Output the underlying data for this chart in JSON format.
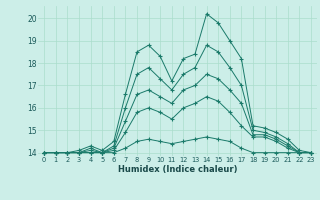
{
  "xlabel": "Humidex (Indice chaleur)",
  "background_color": "#cceee8",
  "grid_color": "#aaddcc",
  "line_color": "#1a7a6a",
  "xlim": [
    -0.5,
    23.5
  ],
  "ylim": [
    13.85,
    20.55
  ],
  "yticks": [
    14,
    15,
    16,
    17,
    18,
    19,
    20
  ],
  "xticks": [
    0,
    1,
    2,
    3,
    4,
    5,
    6,
    7,
    8,
    9,
    10,
    11,
    12,
    13,
    14,
    15,
    16,
    17,
    18,
    19,
    20,
    21,
    22,
    23
  ],
  "series": [
    [
      14.0,
      14.0,
      14.0,
      14.1,
      14.3,
      14.1,
      14.5,
      16.6,
      18.5,
      18.8,
      18.3,
      17.2,
      18.2,
      18.4,
      20.2,
      19.8,
      19.0,
      18.2,
      15.2,
      15.1,
      14.9,
      14.6,
      14.1,
      14.0
    ],
    [
      14.0,
      14.0,
      14.0,
      14.0,
      14.2,
      14.0,
      14.3,
      16.0,
      17.5,
      17.8,
      17.3,
      16.8,
      17.5,
      17.8,
      18.8,
      18.5,
      17.8,
      17.0,
      15.0,
      14.9,
      14.7,
      14.4,
      14.0,
      14.0
    ],
    [
      14.0,
      14.0,
      14.0,
      14.0,
      14.1,
      14.0,
      14.2,
      15.4,
      16.6,
      16.8,
      16.5,
      16.2,
      16.8,
      17.0,
      17.5,
      17.3,
      16.8,
      16.2,
      14.8,
      14.8,
      14.6,
      14.3,
      14.0,
      14.0
    ],
    [
      14.0,
      14.0,
      14.0,
      14.0,
      14.0,
      14.0,
      14.1,
      14.9,
      15.8,
      16.0,
      15.8,
      15.5,
      16.0,
      16.2,
      16.5,
      16.3,
      15.8,
      15.2,
      14.7,
      14.7,
      14.5,
      14.2,
      14.0,
      14.0
    ],
    [
      14.0,
      14.0,
      14.0,
      14.0,
      14.0,
      14.0,
      14.0,
      14.2,
      14.5,
      14.6,
      14.5,
      14.4,
      14.5,
      14.6,
      14.7,
      14.6,
      14.5,
      14.2,
      14.0,
      14.0,
      14.0,
      14.0,
      14.0,
      14.0
    ]
  ]
}
